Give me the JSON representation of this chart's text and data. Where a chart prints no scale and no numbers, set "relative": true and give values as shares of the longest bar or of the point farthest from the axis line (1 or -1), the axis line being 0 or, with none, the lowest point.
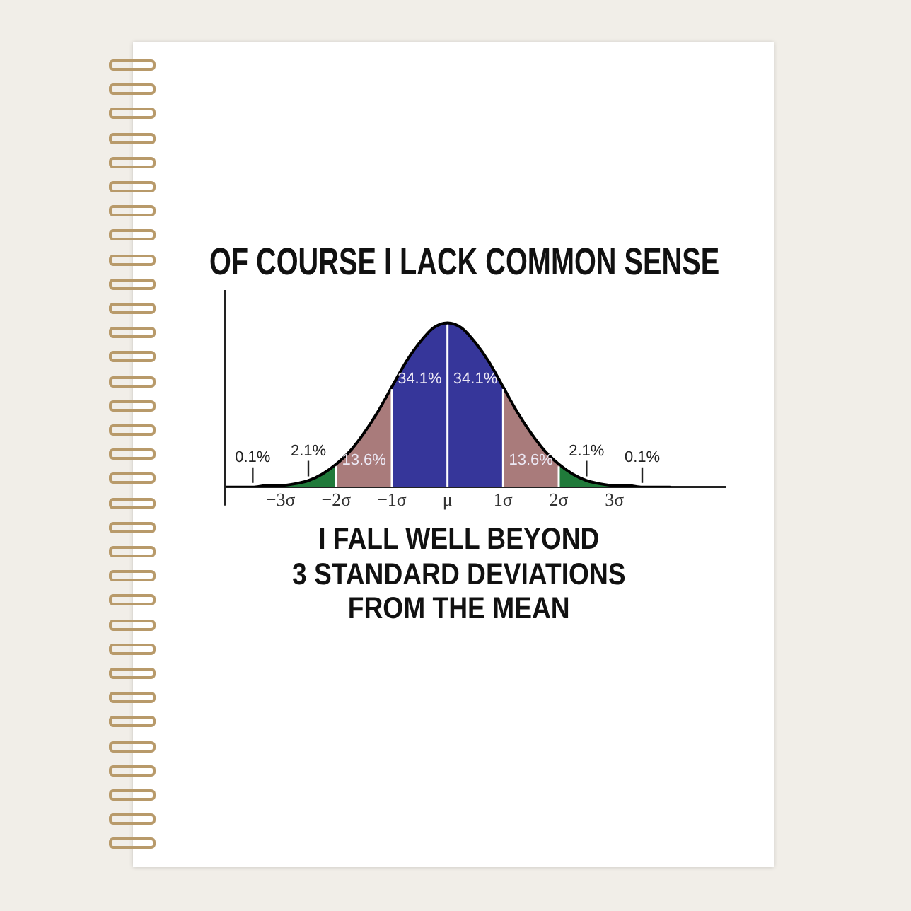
{
  "chart_data": {
    "type": "area",
    "title": "OF COURSE I LACK COMMON SENSE",
    "relative": true,
    "xlim": [
      -4,
      5
    ],
    "xticks": [
      {
        "value": -3,
        "label": "−3σ"
      },
      {
        "value": -2,
        "label": "−2σ"
      },
      {
        "value": -1,
        "label": "−1σ"
      },
      {
        "value": 0,
        "label": "μ"
      },
      {
        "value": 1,
        "label": "1σ"
      },
      {
        "value": 2,
        "label": "2σ"
      },
      {
        "value": 3,
        "label": "3σ"
      }
    ],
    "series": [
      {
        "type": "area",
        "color": "#207a3a",
        "x": [
          -3,
          -2.75,
          -2.5,
          -2.25,
          -2
        ],
        "values": [
          0.01,
          0.02,
          0.04,
          0.08,
          0.14
        ]
      },
      {
        "type": "area",
        "color": "#a97b7b",
        "x": [
          -2,
          -1.75,
          -1.5,
          -1.25,
          -1
        ],
        "values": [
          0.14,
          0.22,
          0.33,
          0.46,
          0.61
        ]
      },
      {
        "type": "area",
        "color": "#36369a",
        "x": [
          -1,
          -0.75,
          -0.5,
          -0.25,
          0
        ],
        "values": [
          0.61,
          0.76,
          0.88,
          0.97,
          1
        ]
      },
      {
        "type": "area",
        "color": "#36369a",
        "x": [
          0,
          0.25,
          0.5,
          0.75,
          1
        ],
        "values": [
          1,
          0.97,
          0.88,
          0.76,
          0.61
        ]
      },
      {
        "type": "area",
        "color": "#a97b7b",
        "x": [
          1,
          1.25,
          1.5,
          1.75,
          2
        ],
        "values": [
          0.61,
          0.46,
          0.33,
          0.22,
          0.14
        ]
      },
      {
        "type": "area",
        "color": "#207a3a",
        "x": [
          2,
          2.25,
          2.5,
          2.75,
          3
        ],
        "values": [
          0.14,
          0.08,
          0.04,
          0.02,
          0.01
        ]
      },
      {
        "type": "line",
        "color": "#000000",
        "x": [
          -4,
          -3.75,
          -3.5,
          -3.25,
          -3,
          -2.75,
          -2.5,
          -2.25,
          -2,
          -1.75,
          -1.5,
          -1.25,
          -1,
          -0.75,
          -0.5,
          -0.25,
          0,
          0.25,
          0.5,
          0.75,
          1,
          1.25,
          1.5,
          1.75,
          2,
          2.25,
          2.5,
          2.75,
          3,
          3.25,
          3.5,
          3.75,
          4
        ],
        "values": [
          0,
          0,
          0,
          0.01,
          0.01,
          0.02,
          0.04,
          0.08,
          0.14,
          0.22,
          0.33,
          0.46,
          0.61,
          0.76,
          0.88,
          0.97,
          1,
          0.97,
          0.88,
          0.76,
          0.61,
          0.46,
          0.33,
          0.22,
          0.14,
          0.08,
          0.04,
          0.02,
          0.01,
          0.01,
          0,
          0,
          0
        ]
      }
    ],
    "annotations": [
      {
        "text": "0.1%",
        "x": -3.5,
        "y": 0
      },
      {
        "text": "2.1%",
        "x": -2.5,
        "y": 0.04
      },
      {
        "text": "13.6%",
        "x": -1.5,
        "y": 0.33
      },
      {
        "text": "34.1%",
        "x": -0.5,
        "y": 0.88
      },
      {
        "text": "34.1%",
        "x": 0.5,
        "y": 0.88
      },
      {
        "text": "13.6%",
        "x": 1.5,
        "y": 0.33
      },
      {
        "text": "2.1%",
        "x": 2.5,
        "y": 0.04
      },
      {
        "text": "0.1%",
        "x": 3.5,
        "y": 0
      },
      "I FALL WELL BEYOND\n3 STANDARD DEVIATIONS\nFROM THE MEAN"
    ]
  }
}
